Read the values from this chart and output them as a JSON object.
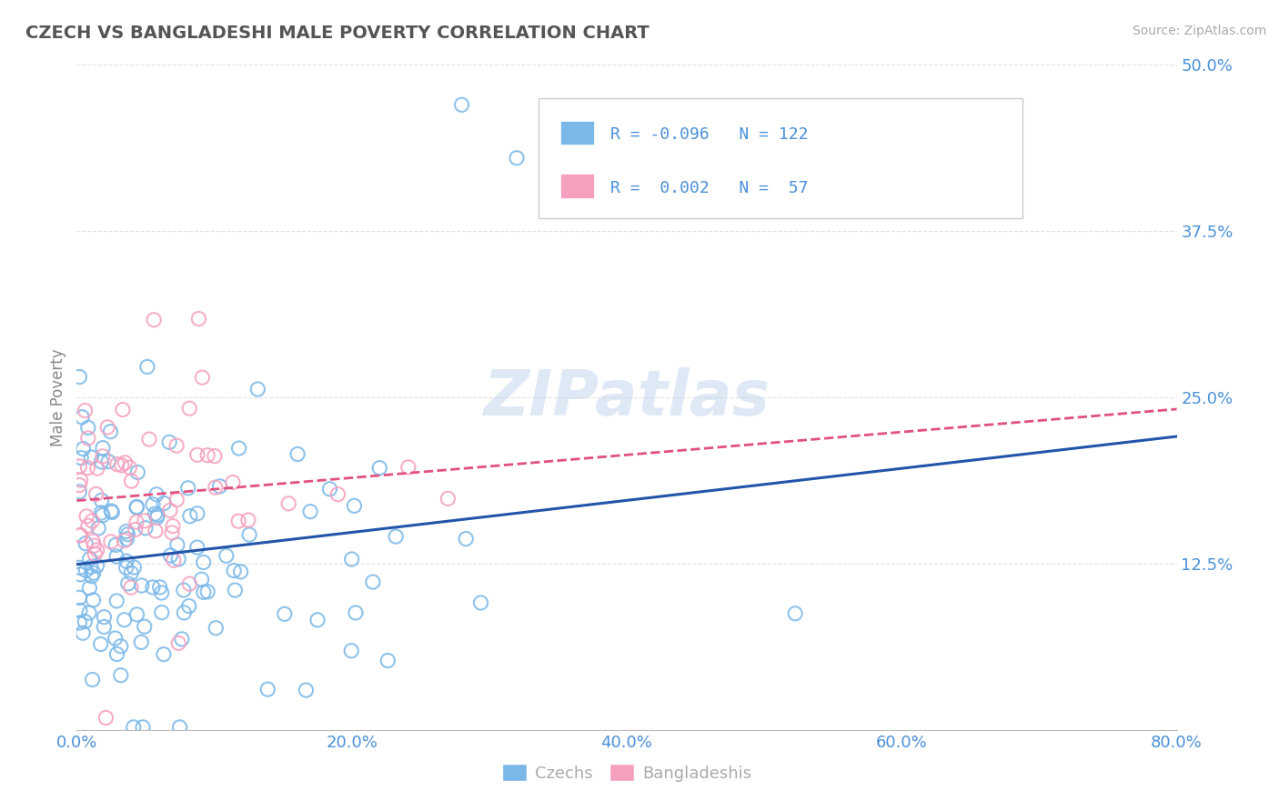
{
  "title": "CZECH VS BANGLADESHI MALE POVERTY CORRELATION CHART",
  "source": "Source: ZipAtlas.com",
  "ylabel": "Male Poverty",
  "xlim": [
    0.0,
    0.8
  ],
  "ylim": [
    0.0,
    0.5
  ],
  "xticks": [
    0.0,
    0.2,
    0.4,
    0.6,
    0.8
  ],
  "yticks": [
    0.0,
    0.125,
    0.25,
    0.375,
    0.5
  ],
  "ytick_labels": [
    "",
    "12.5%",
    "25.0%",
    "37.5%",
    "50.0%"
  ],
  "czech_color": "#7ab8e8",
  "bangladeshi_color": "#f5a0be",
  "czech_line_color": "#2255aa",
  "bangladeshi_line_color": "#e05080",
  "czech_R": -0.096,
  "czech_N": 122,
  "bangladeshi_R": 0.002,
  "bangladeshi_N": 57,
  "background_color": "#ffffff",
  "text_color": "#4a90d9",
  "title_color": "#555555",
  "watermark_color": "#c5d8f0",
  "watermark": "ZIPatlas"
}
